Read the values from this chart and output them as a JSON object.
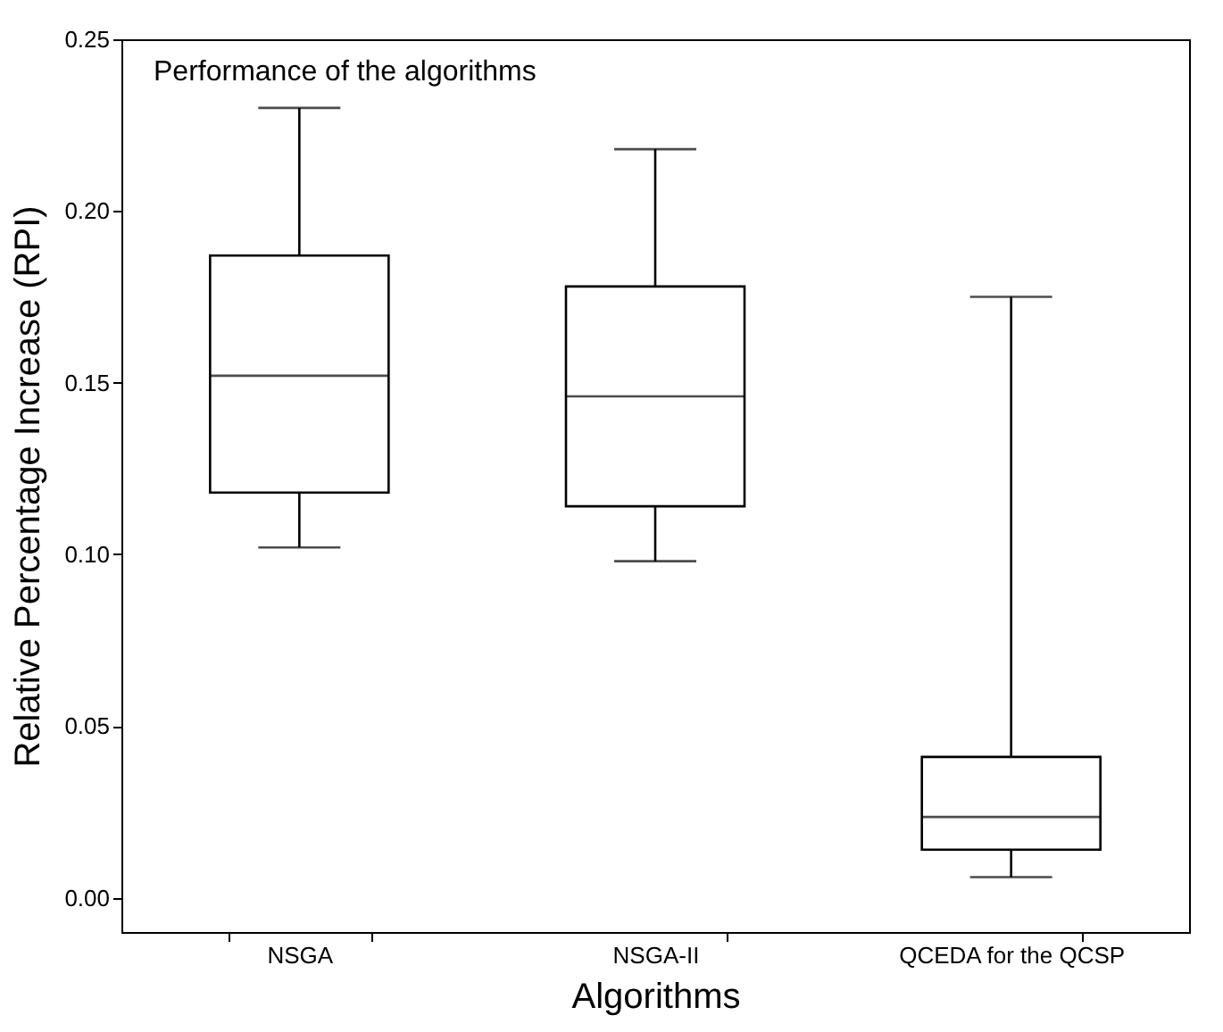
{
  "chart_data": {
    "type": "box",
    "title": "Performance of the algorithms",
    "xlabel": "Algorithms",
    "ylabel": "Relative Percentage Increase (RPI)",
    "categories": [
      "NSGA",
      "NSGA-II",
      "QCEDA for the QCSP"
    ],
    "boxes": [
      {
        "low": 0.102,
        "q1": 0.118,
        "median": 0.152,
        "q3": 0.187,
        "high": 0.23
      },
      {
        "low": 0.098,
        "q1": 0.114,
        "median": 0.146,
        "q3": 0.178,
        "high": 0.218
      },
      {
        "low": 0.006,
        "q1": 0.014,
        "median": 0.0235,
        "q3": 0.041,
        "high": 0.175
      }
    ],
    "ylim": [
      -0.01,
      0.25
    ],
    "yticks": [
      {
        "value": 0,
        "label": "0.00"
      },
      {
        "value": 0.05,
        "label": "0.05"
      },
      {
        "value": 0.1,
        "label": "0.10"
      },
      {
        "value": 0.15,
        "label": "0.15"
      },
      {
        "value": 0.2,
        "label": "0.20"
      },
      {
        "value": 0.25,
        "label": "0.25"
      }
    ],
    "grid": false
  }
}
